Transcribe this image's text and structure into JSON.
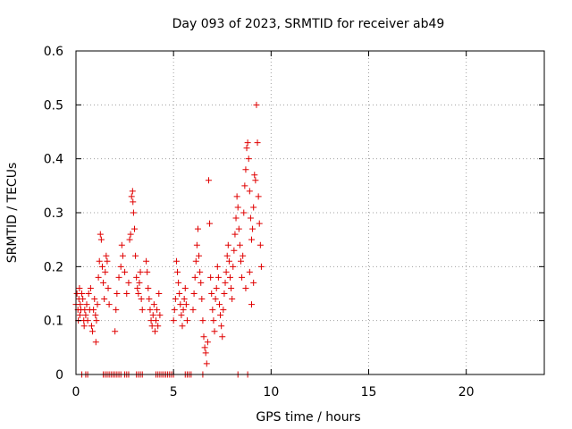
{
  "chart_data": {
    "type": "scatter",
    "title": "Day 093 of 2023, SRMTID for receiver ab49",
    "xlabel": "GPS time / hours",
    "ylabel": "SRMTID / TECUs",
    "xlim": [
      0,
      24
    ],
    "ylim": [
      0,
      0.6
    ],
    "xticks": [
      0,
      5,
      10,
      15,
      20
    ],
    "yticks": [
      0,
      0.1,
      0.2,
      0.3,
      0.4,
      0.5,
      0.6
    ],
    "xtick_labels": [
      "0",
      "5",
      "10",
      "15",
      "20"
    ],
    "ytick_labels": [
      "0",
      "0.1",
      "0.2",
      "0.3",
      "0.4",
      "0.5",
      "0.6"
    ],
    "grid": true,
    "marker": "plus",
    "marker_color": "#e00000",
    "series": [
      {
        "name": "SRMTID",
        "points": [
          [
            0.0,
            0.13
          ],
          [
            0.05,
            0.15
          ],
          [
            0.1,
            0.12
          ],
          [
            0.12,
            0.1
          ],
          [
            0.15,
            0.14
          ],
          [
            0.18,
            0.16
          ],
          [
            0.2,
            0.11
          ],
          [
            0.22,
            0.13
          ],
          [
            0.25,
            0.12
          ],
          [
            0.3,
            0.15
          ],
          [
            0.35,
            0.14
          ],
          [
            0.4,
            0.1
          ],
          [
            0.42,
            0.09
          ],
          [
            0.45,
            0.12
          ],
          [
            0.5,
            0.11
          ],
          [
            0.55,
            0.13
          ],
          [
            0.6,
            0.1
          ],
          [
            0.65,
            0.15
          ],
          [
            0.7,
            0.12
          ],
          [
            0.75,
            0.16
          ],
          [
            0.8,
            0.09
          ],
          [
            0.85,
            0.08
          ],
          [
            0.9,
            0.12
          ],
          [
            0.95,
            0.14
          ],
          [
            1.0,
            0.11
          ],
          [
            1.02,
            0.06
          ],
          [
            1.05,
            0.1
          ],
          [
            1.1,
            0.13
          ],
          [
            1.15,
            0.18
          ],
          [
            1.2,
            0.21
          ],
          [
            1.25,
            0.26
          ],
          [
            1.3,
            0.25
          ],
          [
            1.35,
            0.2
          ],
          [
            1.4,
            0.17
          ],
          [
            1.45,
            0.14
          ],
          [
            1.5,
            0.19
          ],
          [
            1.55,
            0.22
          ],
          [
            1.6,
            0.21
          ],
          [
            1.65,
            0.16
          ],
          [
            1.7,
            0.13
          ],
          [
            2.0,
            0.08
          ],
          [
            2.05,
            0.12
          ],
          [
            2.1,
            0.15
          ],
          [
            2.2,
            0.18
          ],
          [
            2.3,
            0.2
          ],
          [
            2.35,
            0.24
          ],
          [
            2.4,
            0.22
          ],
          [
            2.5,
            0.19
          ],
          [
            2.6,
            0.15
          ],
          [
            2.7,
            0.17
          ],
          [
            2.75,
            0.25
          ],
          [
            2.8,
            0.26
          ],
          [
            2.85,
            0.33
          ],
          [
            2.9,
            0.34
          ],
          [
            2.92,
            0.32
          ],
          [
            2.95,
            0.3
          ],
          [
            3.0,
            0.27
          ],
          [
            3.05,
            0.22
          ],
          [
            3.1,
            0.18
          ],
          [
            3.15,
            0.16
          ],
          [
            3.2,
            0.15
          ],
          [
            3.25,
            0.17
          ],
          [
            3.3,
            0.19
          ],
          [
            3.35,
            0.14
          ],
          [
            3.4,
            0.12
          ],
          [
            3.6,
            0.21
          ],
          [
            3.65,
            0.19
          ],
          [
            3.7,
            0.16
          ],
          [
            3.75,
            0.14
          ],
          [
            3.8,
            0.12
          ],
          [
            3.85,
            0.1
          ],
          [
            3.9,
            0.09
          ],
          [
            3.95,
            0.11
          ],
          [
            4.0,
            0.13
          ],
          [
            4.05,
            0.08
          ],
          [
            4.1,
            0.1
          ],
          [
            4.15,
            0.12
          ],
          [
            4.2,
            0.09
          ],
          [
            4.25,
            0.15
          ],
          [
            4.3,
            0.11
          ],
          [
            5.0,
            0.1
          ],
          [
            5.05,
            0.12
          ],
          [
            5.1,
            0.14
          ],
          [
            5.15,
            0.21
          ],
          [
            5.2,
            0.19
          ],
          [
            5.25,
            0.17
          ],
          [
            5.3,
            0.15
          ],
          [
            5.35,
            0.13
          ],
          [
            5.4,
            0.11
          ],
          [
            5.45,
            0.09
          ],
          [
            5.5,
            0.12
          ],
          [
            5.55,
            0.14
          ],
          [
            5.6,
            0.16
          ],
          [
            5.65,
            0.13
          ],
          [
            5.7,
            0.1
          ],
          [
            6.0,
            0.12
          ],
          [
            6.05,
            0.15
          ],
          [
            6.1,
            0.18
          ],
          [
            6.15,
            0.21
          ],
          [
            6.2,
            0.24
          ],
          [
            6.25,
            0.27
          ],
          [
            6.3,
            0.22
          ],
          [
            6.35,
            0.19
          ],
          [
            6.4,
            0.17
          ],
          [
            6.45,
            0.14
          ],
          [
            6.5,
            0.1
          ],
          [
            6.55,
            0.07
          ],
          [
            6.6,
            0.05
          ],
          [
            6.65,
            0.04
          ],
          [
            6.7,
            0.02
          ],
          [
            6.75,
            0.06
          ],
          [
            6.8,
            0.36
          ],
          [
            6.85,
            0.28
          ],
          [
            6.9,
            0.18
          ],
          [
            6.95,
            0.15
          ],
          [
            7.0,
            0.12
          ],
          [
            7.05,
            0.1
          ],
          [
            7.1,
            0.08
          ],
          [
            7.15,
            0.14
          ],
          [
            7.2,
            0.16
          ],
          [
            7.25,
            0.2
          ],
          [
            7.3,
            0.18
          ],
          [
            7.35,
            0.13
          ],
          [
            7.4,
            0.11
          ],
          [
            7.45,
            0.09
          ],
          [
            7.5,
            0.07
          ],
          [
            7.55,
            0.12
          ],
          [
            7.6,
            0.15
          ],
          [
            7.65,
            0.17
          ],
          [
            7.7,
            0.19
          ],
          [
            7.75,
            0.22
          ],
          [
            7.8,
            0.24
          ],
          [
            7.85,
            0.21
          ],
          [
            7.9,
            0.18
          ],
          [
            7.95,
            0.16
          ],
          [
            8.0,
            0.14
          ],
          [
            8.05,
            0.2
          ],
          [
            8.1,
            0.23
          ],
          [
            8.15,
            0.26
          ],
          [
            8.2,
            0.29
          ],
          [
            8.25,
            0.33
          ],
          [
            8.3,
            0.31
          ],
          [
            8.35,
            0.27
          ],
          [
            8.4,
            0.24
          ],
          [
            8.45,
            0.21
          ],
          [
            8.5,
            0.18
          ],
          [
            8.55,
            0.22
          ],
          [
            8.6,
            0.3
          ],
          [
            8.65,
            0.35
          ],
          [
            8.7,
            0.38
          ],
          [
            8.75,
            0.42
          ],
          [
            8.8,
            0.43
          ],
          [
            8.85,
            0.4
          ],
          [
            8.9,
            0.34
          ],
          [
            8.95,
            0.29
          ],
          [
            9.0,
            0.25
          ],
          [
            9.05,
            0.27
          ],
          [
            9.1,
            0.31
          ],
          [
            9.15,
            0.37
          ],
          [
            9.2,
            0.36
          ],
          [
            9.25,
            0.5
          ],
          [
            9.3,
            0.43
          ],
          [
            9.35,
            0.33
          ],
          [
            9.4,
            0.28
          ],
          [
            9.45,
            0.24
          ],
          [
            9.5,
            0.2
          ],
          [
            9.1,
            0.17
          ],
          [
            9.0,
            0.13
          ],
          [
            8.9,
            0.19
          ],
          [
            8.7,
            0.16
          ],
          [
            0.3,
            0.0
          ],
          [
            0.5,
            0.0
          ],
          [
            0.6,
            0.0
          ],
          [
            1.4,
            0.0
          ],
          [
            1.5,
            0.0
          ],
          [
            1.6,
            0.0
          ],
          [
            1.7,
            0.0
          ],
          [
            1.8,
            0.0
          ],
          [
            1.9,
            0.0
          ],
          [
            2.0,
            0.0
          ],
          [
            2.1,
            0.0
          ],
          [
            2.2,
            0.0
          ],
          [
            2.3,
            0.0
          ],
          [
            2.5,
            0.0
          ],
          [
            2.6,
            0.0
          ],
          [
            2.7,
            0.0
          ],
          [
            3.1,
            0.0
          ],
          [
            3.2,
            0.0
          ],
          [
            3.3,
            0.0
          ],
          [
            3.4,
            0.0
          ],
          [
            4.1,
            0.0
          ],
          [
            4.2,
            0.0
          ],
          [
            4.3,
            0.0
          ],
          [
            4.4,
            0.0
          ],
          [
            4.5,
            0.0
          ],
          [
            4.6,
            0.0
          ],
          [
            4.7,
            0.0
          ],
          [
            4.8,
            0.0
          ],
          [
            4.9,
            0.0
          ],
          [
            5.0,
            0.0
          ],
          [
            5.6,
            0.0
          ],
          [
            5.7,
            0.0
          ],
          [
            5.8,
            0.0
          ],
          [
            5.9,
            0.0
          ],
          [
            6.5,
            0.0
          ],
          [
            8.3,
            0.0
          ],
          [
            8.8,
            0.0
          ]
        ]
      }
    ]
  }
}
